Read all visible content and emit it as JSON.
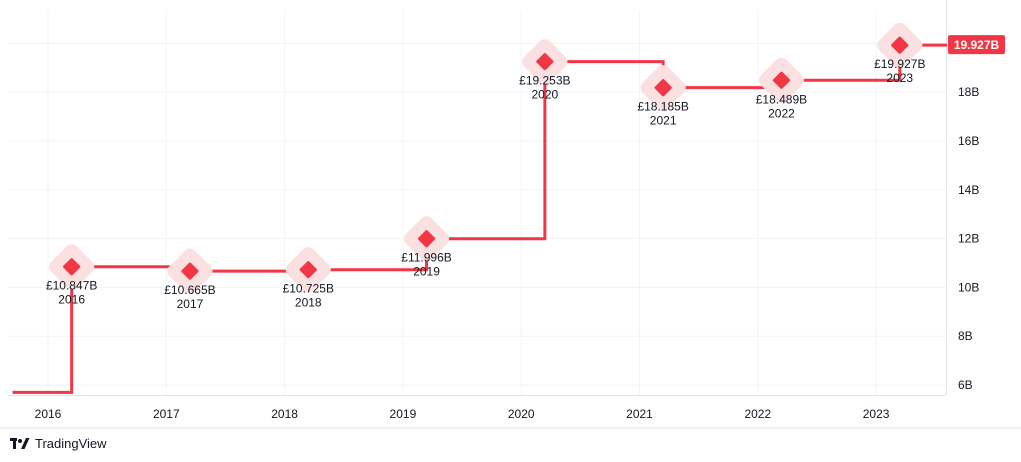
{
  "colors": {
    "series": "#f23645",
    "halo": "#fbe0e2",
    "grid": "#f0f3fa",
    "text": "#131722"
  },
  "brand": {
    "name": "TradingView"
  },
  "chart_data": {
    "type": "line",
    "step": true,
    "x_ticks": [
      "2016",
      "2017",
      "2018",
      "2019",
      "2020",
      "2021",
      "2022",
      "2023"
    ],
    "y_ticks": [
      "6B",
      "8B",
      "10B",
      "12B",
      "14B",
      "16B",
      "18B"
    ],
    "ylim": [
      5.0,
      20.8
    ],
    "grid": true,
    "last_value_label": "19.927B",
    "points": [
      {
        "x": 2016.2,
        "y": 10.847,
        "value_label": "£10.847B",
        "year_label": "2016"
      },
      {
        "x": 2017.2,
        "y": 10.665,
        "value_label": "£10.665B",
        "year_label": "2017"
      },
      {
        "x": 2018.2,
        "y": 10.725,
        "value_label": "£10.725B",
        "year_label": "2018"
      },
      {
        "x": 2019.2,
        "y": 11.996,
        "value_label": "£11.996B",
        "year_label": "2019"
      },
      {
        "x": 2020.2,
        "y": 19.253,
        "value_label": "£19.253B",
        "year_label": "2020"
      },
      {
        "x": 2021.2,
        "y": 18.185,
        "value_label": "£18.185B",
        "year_label": "2021"
      },
      {
        "x": 2022.2,
        "y": 18.489,
        "value_label": "£18.489B",
        "year_label": "2022"
      },
      {
        "x": 2023.2,
        "y": 19.927,
        "value_label": "£19.927B",
        "year_label": "2023"
      }
    ],
    "line_start": {
      "x": 2015.7,
      "y": 5.7
    },
    "line_end_x": 2023.6
  }
}
